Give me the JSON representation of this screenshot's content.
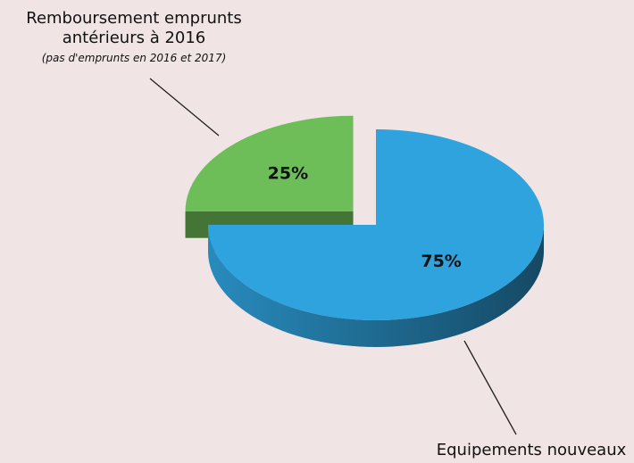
{
  "chart_data": {
    "type": "pie",
    "categories": [
      "Equipements nouveaux",
      "Remboursement emprunts antérieurs à 2016"
    ],
    "values": [
      75,
      25
    ],
    "value_labels": [
      "75%",
      "25%"
    ],
    "colors": [
      "#2fa3de",
      "#6dbd59"
    ],
    "annotation": "(pas d'emprunts en 2016 et 2017)"
  }
}
